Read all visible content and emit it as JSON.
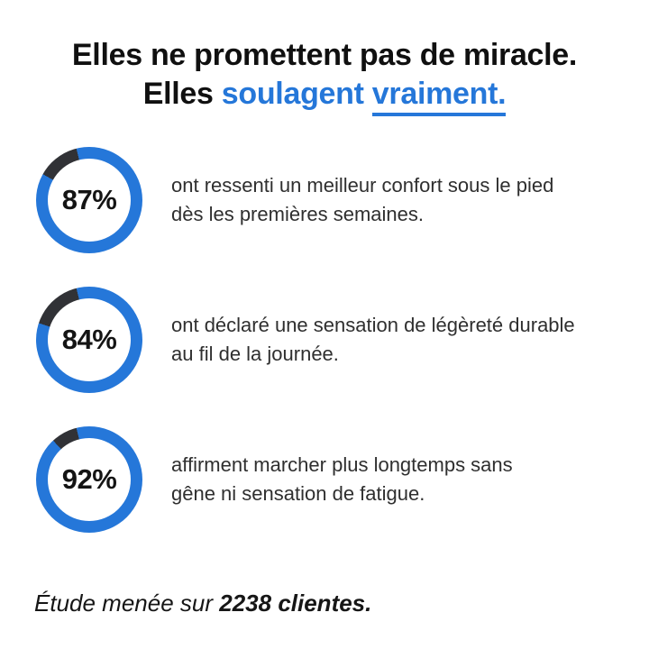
{
  "title": {
    "line1": "Elles ne promettent pas de miracle.",
    "line2_prefix": "Elles",
    "line2_highlight": "soulagent",
    "line2_underlined": "vraiment."
  },
  "stats": [
    {
      "percent": "87%",
      "value": 87,
      "lines": [
        "ont ressenti un meilleur confort sous le pied",
        "dès les premières semaines."
      ]
    },
    {
      "percent": "84%",
      "value": 84,
      "lines": [
        "ont déclaré une sensation de légèreté durable",
        "au fil de la journée."
      ]
    },
    {
      "percent": "92%",
      "value": 92,
      "lines": [
        "affirment marcher plus longtemps sans",
        "gêne ni sensation de fatigue."
      ]
    }
  ],
  "footer": {
    "prefix": "Étude menée sur",
    "bold": "2238 clientes."
  },
  "colors": {
    "accent_blue": "#2577D9",
    "ring_remainder_dark": "#313236",
    "title_black": "#101010",
    "body_text": "#2f2f2f",
    "background": "#ffffff"
  },
  "chart_data": {
    "type": "pie",
    "variant": "donut-progress",
    "units": "percent",
    "title": "Elles ne promettent pas de miracle. Elles soulagent vraiment.",
    "values": [
      87,
      84,
      92
    ],
    "labels": [
      "ont ressenti un meilleur confort sous le pied dès les premières semaines.",
      "ont déclaré une sensation de légèreté durable au fil de la journée.",
      "affirment marcher plus longtemps sans gêne ni sensation de fatigue."
    ],
    "filled_color": "#2577D9",
    "remainder_color": "#313236",
    "annotation": "Étude menée sur 2238 clientes."
  }
}
